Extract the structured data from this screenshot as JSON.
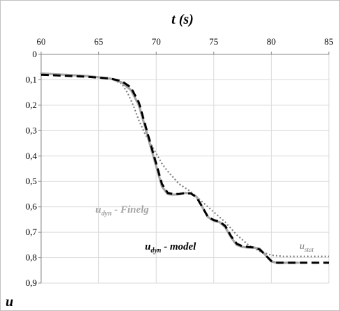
{
  "chart_data": {
    "type": "line",
    "title": "",
    "xlabel": {
      "main": "t",
      "unit": "(s)"
    },
    "ylabel": "u",
    "xlim": [
      60,
      85
    ],
    "ylim": [
      0,
      0.9
    ],
    "y_inverted": true,
    "x_axis_position": "top",
    "grid": true,
    "x_ticks": [
      "60",
      "65",
      "70",
      "75",
      "80",
      "85"
    ],
    "y_ticks": [
      "0",
      "0,1",
      "0,2",
      "0,3",
      "0,4",
      "0,5",
      "0,6",
      "0,7",
      "0,8",
      "0,9"
    ],
    "x_tick_values": [
      60,
      65,
      70,
      75,
      80,
      85
    ],
    "y_tick_values": [
      0,
      0.1,
      0.2,
      0.3,
      0.4,
      0.5,
      0.6,
      0.7,
      0.8,
      0.9
    ],
    "series": [
      {
        "name": "u_dyn - Finelg",
        "label_main": "u",
        "label_sub": "dyn",
        "label_rest": " - Finelg",
        "style": "solid",
        "color": "#a6a6a6",
        "points": [
          [
            60,
            0.075
          ],
          [
            62,
            0.08
          ],
          [
            64,
            0.085
          ],
          [
            66,
            0.095
          ],
          [
            67,
            0.11
          ],
          [
            67.8,
            0.14
          ],
          [
            68.5,
            0.2
          ],
          [
            69,
            0.28
          ],
          [
            69.5,
            0.36
          ],
          [
            70,
            0.44
          ],
          [
            70.5,
            0.52
          ],
          [
            71,
            0.55
          ],
          [
            71.5,
            0.552
          ],
          [
            72,
            0.55
          ],
          [
            72.5,
            0.545
          ],
          [
            73,
            0.547
          ],
          [
            73.5,
            0.56
          ],
          [
            74,
            0.6
          ],
          [
            74.5,
            0.64
          ],
          [
            75,
            0.655
          ],
          [
            75.5,
            0.66
          ],
          [
            76,
            0.68
          ],
          [
            76.5,
            0.72
          ],
          [
            77,
            0.75
          ],
          [
            77.5,
            0.758
          ],
          [
            78,
            0.76
          ],
          [
            78.5,
            0.76
          ],
          [
            79,
            0.765
          ],
          [
            79.5,
            0.79
          ],
          [
            80,
            0.815
          ],
          [
            80.5,
            0.82
          ],
          [
            82.3,
            0.82
          ]
        ]
      },
      {
        "name": "u_dyn - model",
        "label_main": "u",
        "label_sub": "dyn",
        "label_rest": " - model",
        "style": "dashed",
        "color": "#000000",
        "points": [
          [
            60,
            0.08
          ],
          [
            62,
            0.084
          ],
          [
            64,
            0.088
          ],
          [
            66,
            0.095
          ],
          [
            67,
            0.105
          ],
          [
            67.8,
            0.13
          ],
          [
            68.5,
            0.19
          ],
          [
            69,
            0.27
          ],
          [
            69.5,
            0.35
          ],
          [
            70,
            0.43
          ],
          [
            70.5,
            0.51
          ],
          [
            71,
            0.545
          ],
          [
            71.5,
            0.55
          ],
          [
            72,
            0.549
          ],
          [
            72.5,
            0.546
          ],
          [
            73,
            0.547
          ],
          [
            73.5,
            0.562
          ],
          [
            74,
            0.6
          ],
          [
            74.5,
            0.64
          ],
          [
            75,
            0.652
          ],
          [
            75.5,
            0.658
          ],
          [
            76,
            0.675
          ],
          [
            76.5,
            0.715
          ],
          [
            77,
            0.745
          ],
          [
            77.5,
            0.755
          ],
          [
            78,
            0.758
          ],
          [
            78.5,
            0.76
          ],
          [
            79,
            0.768
          ],
          [
            79.5,
            0.79
          ],
          [
            80,
            0.813
          ],
          [
            80.5,
            0.82
          ],
          [
            85,
            0.82
          ]
        ]
      },
      {
        "name": "u_stat",
        "label_main": "u",
        "label_sub": "stat",
        "label_rest": "",
        "style": "dotted",
        "color": "#7f7f7f",
        "points": [
          [
            60,
            0.075
          ],
          [
            64,
            0.085
          ],
          [
            66,
            0.095
          ],
          [
            67,
            0.115
          ],
          [
            67.5,
            0.15
          ],
          [
            68,
            0.2
          ],
          [
            68.5,
            0.26
          ],
          [
            69,
            0.31
          ],
          [
            69.5,
            0.35
          ],
          [
            70,
            0.39
          ],
          [
            70.5,
            0.43
          ],
          [
            71,
            0.46
          ],
          [
            72,
            0.51
          ],
          [
            73,
            0.54
          ],
          [
            74,
            0.58
          ],
          [
            75,
            0.62
          ],
          [
            76,
            0.66
          ],
          [
            77,
            0.71
          ],
          [
            78,
            0.75
          ],
          [
            79,
            0.775
          ],
          [
            80,
            0.79
          ],
          [
            81,
            0.795
          ],
          [
            85,
            0.795
          ]
        ]
      }
    ]
  }
}
